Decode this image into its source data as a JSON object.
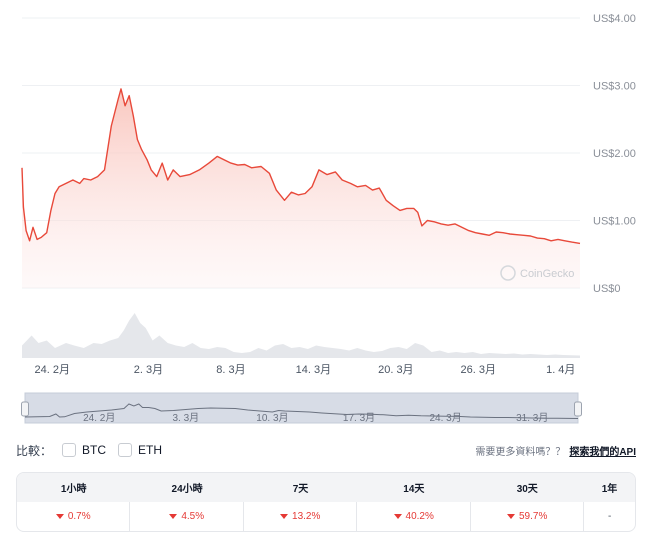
{
  "chart_data": {
    "type": "area",
    "y_axis": {
      "labels": [
        "US$4.00",
        "US$3.00",
        "US$2.00",
        "US$1.00",
        "US$0"
      ],
      "values": [
        4,
        3,
        2,
        1,
        0
      ],
      "ylim": [
        0,
        4
      ]
    },
    "x_tick_labels": [
      "24. 2月",
      "2. 3月",
      "8. 3月",
      "14. 3月",
      "20. 3月",
      "26. 3月",
      "1. 4月"
    ],
    "x_tick_days": [
      2,
      9,
      15,
      21,
      27,
      33,
      39
    ],
    "x_range_days": [
      -0.2,
      40.4
    ],
    "price": {
      "days": [
        -0.2,
        -0.1,
        0.1,
        0.35,
        0.6,
        0.9,
        1.2,
        1.6,
        1.9,
        2.2,
        2.5,
        3.0,
        3.5,
        4.0,
        4.3,
        4.8,
        5.3,
        5.8,
        6.3,
        6.8,
        7.0,
        7.3,
        7.6,
        7.9,
        8.2,
        8.5,
        8.9,
        9.2,
        9.6,
        10.0,
        10.4,
        10.8,
        11.3,
        12.0,
        12.7,
        13.4,
        14.0,
        14.5,
        15.0,
        15.5,
        16.0,
        16.5,
        17.2,
        17.8,
        18.3,
        18.9,
        19.4,
        19.9,
        20.4,
        20.9,
        21.4,
        22.0,
        22.6,
        23.1,
        23.7,
        24.2,
        24.8,
        25.3,
        25.8,
        26.3,
        26.8,
        27.3,
        27.8,
        28.3,
        28.6,
        28.9,
        29.3,
        29.8,
        30.3,
        30.8,
        31.3,
        31.8,
        32.3,
        32.8,
        33.3,
        33.8,
        34.3,
        34.8,
        35.3,
        35.8,
        36.3,
        36.8,
        37.3,
        37.8,
        38.3,
        38.8,
        39.3,
        39.8,
        40.4
      ],
      "values": [
        1.78,
        1.2,
        0.85,
        0.7,
        0.9,
        0.72,
        0.75,
        0.82,
        1.15,
        1.4,
        1.5,
        1.55,
        1.6,
        1.55,
        1.62,
        1.6,
        1.65,
        1.75,
        2.4,
        2.8,
        2.95,
        2.7,
        2.85,
        2.55,
        2.2,
        2.05,
        1.9,
        1.75,
        1.65,
        1.85,
        1.6,
        1.75,
        1.65,
        1.68,
        1.75,
        1.85,
        1.95,
        1.9,
        1.85,
        1.82,
        1.83,
        1.78,
        1.8,
        1.7,
        1.45,
        1.3,
        1.42,
        1.38,
        1.4,
        1.5,
        1.75,
        1.68,
        1.72,
        1.6,
        1.55,
        1.5,
        1.52,
        1.45,
        1.48,
        1.3,
        1.22,
        1.15,
        1.18,
        1.18,
        1.12,
        0.92,
        1.0,
        0.98,
        0.95,
        0.93,
        0.95,
        0.9,
        0.85,
        0.82,
        0.8,
        0.78,
        0.83,
        0.82,
        0.8,
        0.79,
        0.78,
        0.77,
        0.74,
        0.73,
        0.7,
        0.72,
        0.7,
        0.68,
        0.66
      ]
    },
    "volume": {
      "days": [
        -0.2,
        0.5,
        1.0,
        1.6,
        2.2,
        3.0,
        3.6,
        4.3,
        5.0,
        5.6,
        6.2,
        6.8,
        7.2,
        7.6,
        8.0,
        8.4,
        8.8,
        9.3,
        9.8,
        10.4,
        11.0,
        11.6,
        12.2,
        12.8,
        13.4,
        14.0,
        14.6,
        15.2,
        15.8,
        16.4,
        17.0,
        17.6,
        18.2,
        18.8,
        19.4,
        20.0,
        20.6,
        21.2,
        21.8,
        22.4,
        23.0,
        23.6,
        24.2,
        24.8,
        25.4,
        26.0,
        26.6,
        27.2,
        27.8,
        28.4,
        29.0,
        29.6,
        30.2,
        30.8,
        31.4,
        32.0,
        32.6,
        33.2,
        33.8,
        34.4,
        35.0,
        35.6,
        36.2,
        36.8,
        37.4,
        38.0,
        38.6,
        39.2,
        40.4
      ],
      "values": [
        0.25,
        0.45,
        0.3,
        0.35,
        0.2,
        0.3,
        0.25,
        0.2,
        0.3,
        0.28,
        0.35,
        0.4,
        0.55,
        0.75,
        0.9,
        0.7,
        0.6,
        0.35,
        0.45,
        0.3,
        0.25,
        0.22,
        0.3,
        0.2,
        0.18,
        0.22,
        0.2,
        0.12,
        0.1,
        0.12,
        0.2,
        0.15,
        0.25,
        0.28,
        0.2,
        0.22,
        0.18,
        0.25,
        0.22,
        0.2,
        0.18,
        0.15,
        0.2,
        0.15,
        0.12,
        0.14,
        0.2,
        0.22,
        0.18,
        0.3,
        0.25,
        0.12,
        0.15,
        0.1,
        0.12,
        0.1,
        0.12,
        0.08,
        0.1,
        0.09,
        0.08,
        0.09,
        0.07,
        0.08,
        0.07,
        0.06,
        0.07,
        0.06,
        0.05
      ]
    },
    "navigator": {
      "x_tick_labels": [
        "24. 2月",
        "3. 3月",
        "10. 3月",
        "17. 3月",
        "24. 3月",
        "31. 3月"
      ],
      "x_tick_days": [
        -11,
        -4,
        3,
        10,
        17,
        24
      ],
      "x_range_days": [
        -17,
        27.7
      ],
      "y_range": [
        0,
        3.0
      ],
      "days": [
        -17,
        -16,
        -15,
        -14.5,
        -14.2,
        -13.8,
        -13,
        -12,
        -11,
        -10,
        -9,
        -8.6,
        -8.2,
        -7.8,
        -7.5,
        -7,
        -6.5,
        -6,
        -5,
        -4,
        -3,
        -2,
        -1,
        0,
        1,
        2,
        3,
        3.5,
        4,
        5,
        6,
        7,
        8,
        9,
        10,
        11,
        12,
        13,
        14,
        15,
        16,
        17,
        18,
        19,
        20,
        21,
        22,
        23,
        24,
        25,
        26,
        27.7
      ],
      "values": [
        0.6,
        0.62,
        0.65,
        0.9,
        0.6,
        0.62,
        0.95,
        1.1,
        1.2,
        1.3,
        1.45,
        1.9,
        1.7,
        1.9,
        1.55,
        1.55,
        1.45,
        1.2,
        1.25,
        1.35,
        1.45,
        1.5,
        1.48,
        1.45,
        1.3,
        1.2,
        1.1,
        1.25,
        1.2,
        1.15,
        1.1,
        1.0,
        0.92,
        0.85,
        0.9,
        0.88,
        0.82,
        0.72,
        0.78,
        0.72,
        0.7,
        0.68,
        0.66,
        0.6,
        0.58,
        0.55,
        0.55,
        0.52,
        0.5,
        0.48,
        0.47,
        0.45
      ]
    },
    "grid": true,
    "colors": {
      "line": "#e8493a",
      "fill": "#fde2dd",
      "volume": "#e5e7eb",
      "grid": "#eef0f3",
      "navigator_line": "#6b7280",
      "navigator_fill": "#d7dce6"
    }
  },
  "watermark": "CoinGecko",
  "compare": {
    "label": "比較：",
    "options": [
      "BTC",
      "ETH"
    ],
    "help_text": "需要更多資料嗎？？",
    "help_link": "探索我們的API"
  },
  "table": {
    "headers": [
      "1小時",
      "24小時",
      "7天",
      "14天",
      "30天",
      "1年"
    ],
    "values": [
      "0.7%",
      "4.5%",
      "13.2%",
      "40.2%",
      "59.7%",
      "-"
    ],
    "down": [
      true,
      true,
      true,
      true,
      true,
      false
    ]
  }
}
